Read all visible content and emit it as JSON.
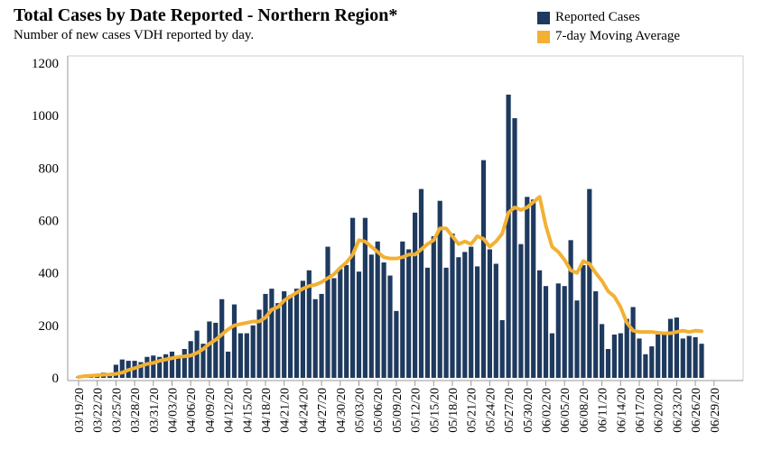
{
  "chart_data": {
    "type": "bar",
    "title": "Total Cases by Date Reported - Northern Region*",
    "subtitle": "Number of new cases VDH reported by day.",
    "xlabel": "",
    "ylabel": "",
    "ylim": [
      0,
      1200
    ],
    "yticks": [
      0,
      200,
      400,
      600,
      800,
      1000,
      1200
    ],
    "start_date": "03/19/20",
    "xtick_labels": [
      "03/19/20",
      "03/22/20",
      "03/25/20",
      "03/28/20",
      "03/31/20",
      "04/03/20",
      "04/06/20",
      "04/09/20",
      "04/12/20",
      "04/15/20",
      "04/18/20",
      "04/21/20",
      "04/24/20",
      "04/27/20",
      "04/30/20",
      "05/03/20",
      "05/06/20",
      "05/09/20",
      "05/12/20",
      "05/15/20",
      "05/18/20",
      "05/21/20",
      "05/24/20",
      "05/27/20",
      "05/30/20",
      "06/02/20",
      "06/05/20",
      "06/08/20",
      "06/11/20",
      "06/14/20",
      "06/17/20",
      "06/20/20",
      "06/23/20",
      "06/26/20",
      "06/29/20"
    ],
    "legend": [
      {
        "label": "Reported Cases",
        "color": "#1f3a5f"
      },
      {
        "label": "7-day Moving Average",
        "color": "#f2b134"
      }
    ],
    "series": [
      {
        "name": "Reported Cases",
        "kind": "bar",
        "color": "#1f3a5f",
        "values": [
          5,
          10,
          10,
          15,
          20,
          10,
          50,
          70,
          65,
          65,
          60,
          80,
          85,
          80,
          90,
          100,
          80,
          110,
          140,
          180,
          130,
          215,
          210,
          300,
          100,
          280,
          170,
          170,
          200,
          260,
          320,
          340,
          285,
          330,
          315,
          340,
          370,
          410,
          300,
          320,
          500,
          380,
          415,
          430,
          610,
          405,
          610,
          470,
          520,
          440,
          390,
          255,
          520,
          490,
          630,
          720,
          420,
          540,
          675,
          420,
          550,
          460,
          480,
          500,
          425,
          830,
          490,
          435,
          220,
          1080,
          990,
          510,
          690,
          680,
          410,
          350,
          170,
          360,
          350,
          525,
          295,
          430,
          720,
          330,
          205,
          110,
          165,
          170,
          225,
          270,
          150,
          90,
          120,
          165,
          165,
          225,
          230,
          150,
          160,
          155,
          130
        ]
      },
      {
        "name": "7-day Moving Average",
        "kind": "line",
        "color": "#f2b134",
        "values": [
          3,
          7,
          8,
          10,
          12,
          13,
          15,
          20,
          30,
          37,
          45,
          53,
          57,
          65,
          70,
          75,
          80,
          82,
          85,
          95,
          110,
          130,
          145,
          165,
          185,
          200,
          205,
          210,
          215,
          215,
          230,
          260,
          270,
          295,
          310,
          325,
          340,
          350,
          355,
          365,
          380,
          395,
          420,
          440,
          470,
          525,
          520,
          500,
          480,
          460,
          455,
          455,
          460,
          470,
          470,
          490,
          510,
          525,
          570,
          570,
          540,
          510,
          520,
          510,
          540,
          530,
          500,
          520,
          550,
          630,
          650,
          640,
          650,
          670,
          690,
          580,
          500,
          480,
          450,
          410,
          400,
          445,
          435,
          400,
          370,
          330,
          310,
          270,
          210,
          180,
          175,
          175,
          175,
          172,
          170,
          170,
          175,
          180,
          175,
          180,
          178
        ]
      }
    ]
  }
}
